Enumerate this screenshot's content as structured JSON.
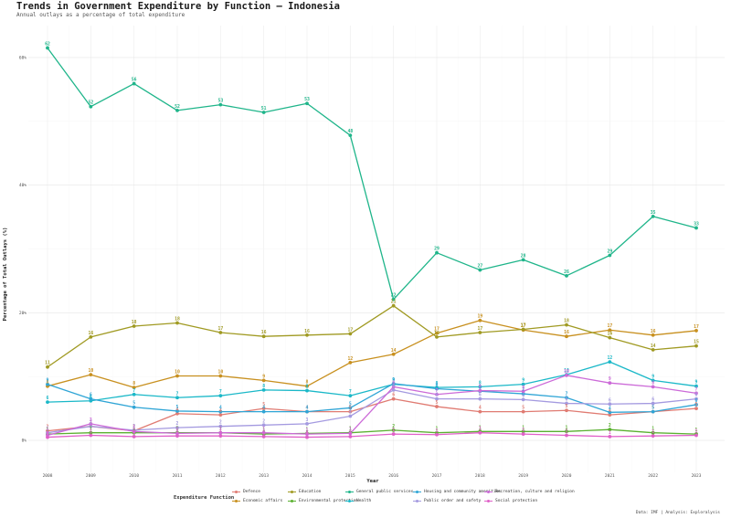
{
  "chart_data": {
    "type": "line",
    "title": "Trends in Government Expenditure by Function — Indonesia",
    "subtitle": "Annual outlays as a percentage of total expenditure",
    "xlabel": "Year",
    "ylabel": "Percentage of Total Outlays (%)",
    "caption": "Data: IMF | Analysis: Exploralysis",
    "legend_title": "Expenditure Function",
    "legend_position": "bottom",
    "x": [
      "2008",
      "2009",
      "2010",
      "2011",
      "2012",
      "2013",
      "2014",
      "2015",
      "2016",
      "2017",
      "2018",
      "2019",
      "2020",
      "2021",
      "2022",
      "2023"
    ],
    "xlim": [
      2008,
      2023
    ],
    "ylim": [
      -5,
      65
    ],
    "yticks": [
      0,
      20,
      40,
      60
    ],
    "ytick_labels": [
      "0%",
      "20%",
      "40%",
      "60%"
    ],
    "grid": true,
    "series": [
      {
        "name": "Defence",
        "color": "#e07b72",
        "values": [
          1.5,
          2.2,
          1.5,
          4.2,
          4.0,
          5.0,
          4.5,
          4.5,
          6.5,
          5.3,
          4.5,
          4.5,
          4.7,
          4.0,
          4.5,
          5.0
        ],
        "labels": [
          "2",
          "2",
          "2",
          "4",
          "4",
          "5",
          "4",
          "5",
          "6",
          "5",
          "4",
          "5",
          "5",
          "4",
          "5",
          "5"
        ]
      },
      {
        "name": "Economic affairs",
        "color": "#c8901f",
        "values": [
          8.5,
          10.3,
          8.3,
          10.1,
          10.1,
          9.4,
          8.5,
          12.2,
          13.5,
          16.8,
          18.8,
          17.3,
          16.3,
          17.3,
          16.5,
          17.2
        ],
        "labels": [
          "8",
          "10",
          "8",
          "10",
          "10",
          "9",
          "8",
          "12",
          "14",
          "17",
          "19",
          "17",
          "16",
          "17",
          "16",
          "17"
        ]
      },
      {
        "name": "Education",
        "color": "#a09a22",
        "values": [
          11.5,
          16.2,
          17.9,
          18.4,
          16.9,
          16.3,
          16.5,
          16.7,
          21.1,
          16.2,
          16.9,
          17.4,
          18.1,
          16.1,
          14.2,
          14.8
        ],
        "labels": [
          "11",
          "16",
          "18",
          "18",
          "17",
          "16",
          "16",
          "17",
          "21",
          "16",
          "17",
          "17",
          "18",
          "16",
          "14",
          "15"
        ]
      },
      {
        "name": "Environmental protection",
        "color": "#5ab030",
        "values": [
          1.0,
          1.2,
          1.2,
          1.2,
          1.2,
          1.0,
          1.1,
          1.2,
          1.6,
          1.2,
          1.4,
          1.4,
          1.4,
          1.7,
          1.2,
          1.0
        ],
        "labels": [
          "1",
          "1",
          "1",
          "1",
          "1",
          "1",
          "1",
          "1",
          "2",
          "1",
          "1",
          "1",
          "1",
          "2",
          "1",
          "1"
        ]
      },
      {
        "name": "General public services",
        "color": "#1fb58a",
        "values": [
          61.5,
          52.3,
          55.9,
          51.7,
          52.6,
          51.4,
          52.8,
          47.8,
          22.1,
          29.4,
          26.7,
          28.3,
          25.8,
          29.0,
          35.1,
          33.3
        ],
        "labels": [
          "62",
          "52",
          "56",
          "52",
          "53",
          "51",
          "53",
          "48",
          "22",
          "29",
          "27",
          "28",
          "26",
          "29",
          "35",
          "33"
        ]
      },
      {
        "name": "Health",
        "color": "#1ab8c8",
        "values": [
          6.0,
          6.2,
          7.2,
          6.7,
          7.0,
          7.9,
          7.8,
          7.0,
          8.8,
          8.3,
          8.4,
          8.8,
          10.3,
          12.3,
          9.4,
          8.5
        ],
        "labels": [
          "6",
          "6",
          "7",
          "7",
          "7",
          "8",
          "8",
          "7",
          "9",
          "8",
          "8",
          "9",
          "10",
          "12",
          "9",
          "9"
        ]
      },
      {
        "name": "Housing and community amenities",
        "color": "#2fa5d6",
        "values": [
          8.8,
          6.5,
          5.2,
          4.6,
          4.5,
          4.5,
          4.5,
          5.1,
          8.9,
          8.1,
          7.7,
          7.3,
          6.7,
          4.4,
          4.5,
          5.6
        ],
        "labels": [
          "9",
          "6",
          "5",
          "5",
          "4",
          "4",
          "4",
          "5",
          "9",
          "8",
          "8",
          "7",
          "7",
          "4",
          "5",
          "6"
        ]
      },
      {
        "name": "Public order and safety",
        "color": "#a49ae0",
        "values": [
          1.2,
          2.2,
          1.6,
          2.0,
          2.2,
          2.4,
          2.6,
          3.8,
          7.9,
          6.5,
          6.5,
          6.4,
          5.8,
          5.7,
          5.8,
          6.5
        ],
        "labels": [
          "1",
          "2",
          "2",
          "2",
          "2",
          "2",
          "3",
          "4",
          "8",
          "6",
          "6",
          "6",
          "6",
          "6",
          "6",
          "6"
        ]
      },
      {
        "name": "Recreation, culture and religion",
        "color": "#cc6ad8",
        "values": [
          0.8,
          2.6,
          1.4,
          1.1,
          1.2,
          1.2,
          1.0,
          1.1,
          8.4,
          7.2,
          7.8,
          7.7,
          10.2,
          9.0,
          8.4,
          7.4
        ],
        "labels": [
          "1",
          "3",
          "1",
          "1",
          "1",
          "1",
          "1",
          "1",
          "8",
          "7",
          "8",
          "8",
          "10",
          "9",
          "8",
          "7"
        ]
      },
      {
        "name": "Social protection",
        "color": "#e060c8",
        "values": [
          0.5,
          0.8,
          0.6,
          0.7,
          0.7,
          0.6,
          0.5,
          0.6,
          1.0,
          0.9,
          1.2,
          1.0,
          0.8,
          0.6,
          0.7,
          0.8
        ],
        "labels": [
          "0",
          "1",
          "1",
          "1",
          "1",
          "1",
          "0",
          "1",
          "1",
          "1",
          "1",
          "1",
          "1",
          "1",
          "1",
          "1"
        ]
      }
    ]
  }
}
